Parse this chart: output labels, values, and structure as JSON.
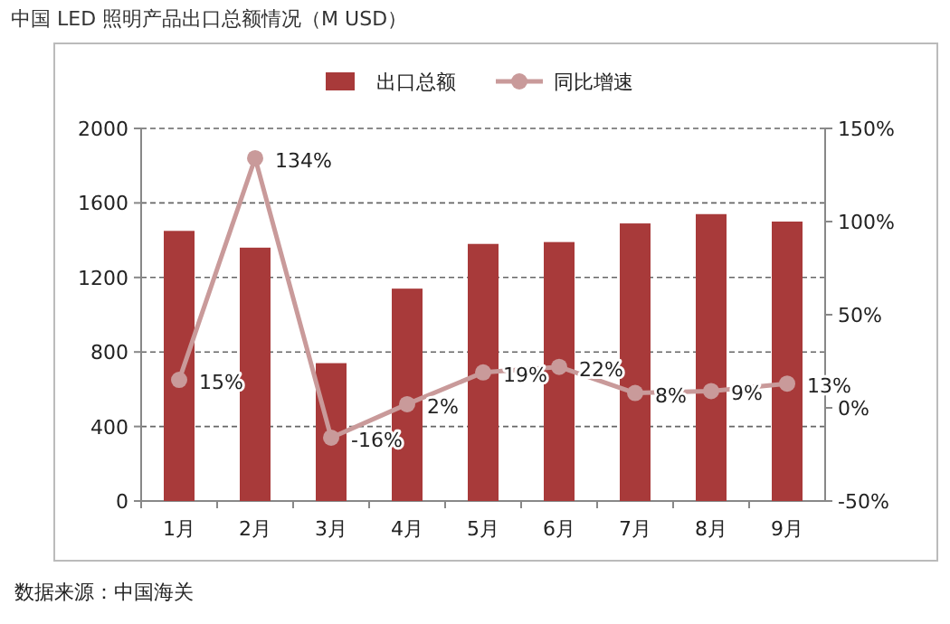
{
  "chart_data": {
    "type": "bar",
    "title": "中国 LED 照明产品出口总额情况（M USD）",
    "categories": [
      "1月",
      "2月",
      "3月",
      "4月",
      "5月",
      "6月",
      "7月",
      "8月",
      "9月"
    ],
    "series": [
      {
        "name": "出口总额",
        "color": "#a83a3a",
        "values": [
          1450,
          1360,
          740,
          1140,
          1380,
          1390,
          1490,
          1540,
          1500
        ]
      },
      {
        "name": "同比增速",
        "type": "line",
        "axis": "y2",
        "color": "#c99a9a",
        "marker": "circle",
        "values": [
          15,
          134,
          -16,
          2,
          19,
          22,
          8,
          9,
          13
        ],
        "value_labels": [
          "15%",
          "134%",
          "-16%",
          "2%",
          "19%",
          "22%",
          "8%",
          "9%",
          "13%"
        ]
      }
    ],
    "ylim": [
      0,
      2000
    ],
    "yticks": [
      0,
      400,
      800,
      1200,
      1600,
      2000
    ],
    "y2lim": [
      -50,
      150
    ],
    "y2ticks": [
      {
        "value": -50,
        "label": "-50%"
      },
      {
        "value": 0,
        "label": "0%"
      },
      {
        "value": 50,
        "label": "50%"
      },
      {
        "value": 100,
        "label": "100%"
      },
      {
        "value": 150,
        "label": "150%"
      }
    ],
    "grid": "y",
    "legend": "top",
    "annotations": [
      "数据来源：中国海关"
    ]
  }
}
